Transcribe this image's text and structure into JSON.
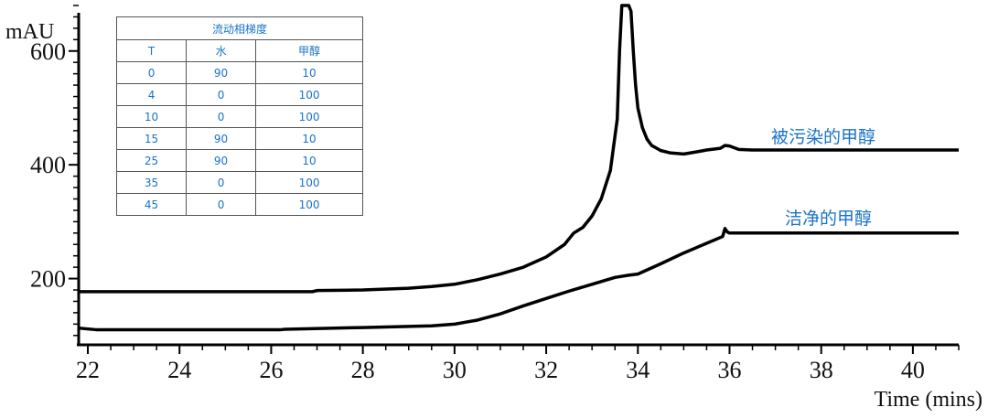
{
  "chart_data": {
    "type": "line",
    "ylabel": "mAU",
    "xlabel": "Time (mins)",
    "xlim": [
      21.8,
      41.0
    ],
    "ylim": [
      90,
      680
    ],
    "x_ticks": [
      22,
      24,
      26,
      28,
      30,
      32,
      34,
      36,
      38,
      40
    ],
    "y_ticks": [
      200,
      400,
      600
    ],
    "grid": false,
    "series": [
      {
        "name": "被污染的甲醇",
        "color": "#000000",
        "x": [
          21.8,
          23,
          25,
          26.9,
          27.0,
          28,
          29,
          29.5,
          30,
          30.5,
          31,
          31.5,
          32,
          32.4,
          32.6,
          32.8,
          33.0,
          33.2,
          33.4,
          33.55,
          33.6,
          33.65,
          33.7,
          33.75,
          33.8,
          33.85,
          33.9,
          33.95,
          34.0,
          34.1,
          34.2,
          34.3,
          34.5,
          34.7,
          35.0,
          35.3,
          35.5,
          35.8,
          35.9,
          36.0,
          36.2,
          36.5,
          37,
          38,
          39,
          40,
          41
        ],
        "y": [
          177,
          177,
          177,
          177,
          179,
          180,
          183,
          186,
          190,
          198,
          208,
          220,
          238,
          260,
          280,
          290,
          310,
          340,
          390,
          480,
          600,
          680,
          680,
          680,
          680,
          670,
          600,
          540,
          500,
          465,
          445,
          434,
          425,
          421,
          419,
          423,
          426,
          429,
          434,
          433,
          427,
          426,
          426,
          426,
          426,
          426,
          426
        ]
      },
      {
        "name": "洁净的甲醇",
        "color": "#000000",
        "x": [
          21.8,
          22.2,
          24,
          26.2,
          26.3,
          28,
          29,
          29.5,
          30,
          30.5,
          31,
          31.5,
          32,
          32.5,
          33,
          33.5,
          33.8,
          34,
          34.5,
          35,
          35.5,
          35.85,
          35.9,
          35.95,
          36.0,
          37,
          38,
          39,
          40,
          41
        ],
        "y": [
          113,
          110,
          110,
          110,
          111,
          114,
          116,
          117,
          120,
          127,
          138,
          152,
          165,
          178,
          190,
          202,
          206,
          208,
          226,
          245,
          262,
          274,
          288,
          282,
          280,
          280,
          280,
          280,
          280,
          280
        ]
      }
    ],
    "annotations": [
      "被污染的甲醇",
      "洁净的甲醇"
    ]
  },
  "gradient_table": {
    "title": "流动相梯度",
    "headers": [
      "T",
      "水",
      "甲醇"
    ],
    "rows": [
      [
        "0",
        "90",
        "10"
      ],
      [
        "4",
        "0",
        "100"
      ],
      [
        "10",
        "0",
        "100"
      ],
      [
        "15",
        "90",
        "10"
      ],
      [
        "25",
        "90",
        "10"
      ],
      [
        "35",
        "0",
        "100"
      ],
      [
        "45",
        "0",
        "100"
      ]
    ]
  },
  "colors": {
    "annotation": "#1a73c8",
    "line": "#000000"
  }
}
